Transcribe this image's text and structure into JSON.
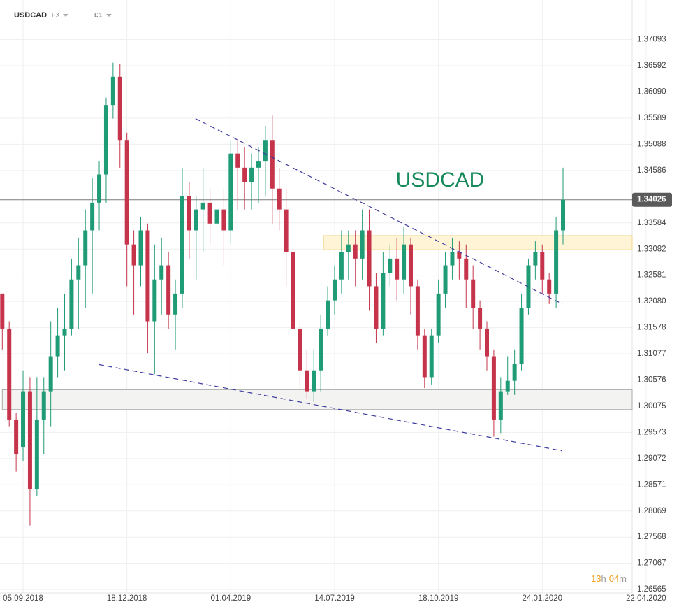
{
  "symbol": "USDCAD",
  "market": "FX",
  "timeframe": "D1",
  "countdown": [
    "13",
    "h",
    "04",
    "m"
  ],
  "chart_data": {
    "type": "candlestick",
    "watermark": "USDCAD",
    "categories": [
      null,
      null,
      null,
      "05.09.2018",
      null,
      null,
      null,
      null,
      null,
      null,
      null,
      null,
      null,
      null,
      null,
      null,
      null,
      null,
      "18.12.2018",
      null,
      null,
      null,
      null,
      null,
      null,
      null,
      null,
      null,
      null,
      null,
      null,
      null,
      null,
      "01.04.2019",
      null,
      null,
      null,
      null,
      null,
      null,
      null,
      null,
      null,
      null,
      null,
      null,
      null,
      null,
      "14.07.2019",
      null,
      null,
      null,
      null,
      null,
      null,
      null,
      null,
      null,
      null,
      null,
      null,
      null,
      null,
      "18.10.2019",
      null,
      null,
      null,
      null,
      null,
      null,
      null,
      null,
      null,
      null,
      null,
      null,
      null,
      null,
      "24.01.2020",
      null,
      null,
      null,
      null,
      null,
      null,
      null,
      null,
      null,
      null,
      null,
      null,
      null,
      null,
      "22.04.2020"
    ],
    "open": [
      1.3223,
      1.3156,
      1.2982,
      1.2929,
      1.3036,
      1.2849,
      1.2982,
      1.3036,
      1.3103,
      1.3143,
      1.3156,
      1.325,
      1.3277,
      1.3344,
      1.3397,
      1.3451,
      1.3584,
      1.3638,
      1.3517,
      1.3317,
      1.3277,
      1.3344,
      1.317,
      1.325,
      1.3277,
      1.3183,
      1.3223,
      1.341,
      1.3344,
      1.3384,
      1.3397,
      1.3357,
      1.3384,
      1.3344,
      1.3491,
      1.3464,
      1.3437,
      1.3464,
      1.3477,
      1.3517,
      1.3424,
      1.3384,
      1.3303,
      1.3156,
      1.3076,
      1.3036,
      1.3076,
      1.3156,
      1.321,
      1.325,
      1.3303,
      1.3317,
      1.329,
      1.3344,
      1.3237,
      1.3156,
      1.3263,
      1.329,
      1.325,
      1.3317,
      1.3237,
      1.3143,
      1.3063,
      1.3143,
      1.3223,
      1.3277,
      1.3303,
      1.329,
      1.325,
      1.3196,
      1.3156,
      1.3103,
      1.2982,
      1.3036,
      1.3056,
      1.3089,
      1.3196,
      1.3277,
      1.3303,
      1.325,
      1.3223,
      1.3344,
      null,
      null,
      null,
      null,
      null,
      null,
      null,
      null,
      null,
      null,
      null,
      null
    ],
    "high": [
      1.3223,
      1.317,
      1.2995,
      1.3076,
      1.3063,
      1.3063,
      1.3063,
      1.317,
      1.3196,
      1.3223,
      1.329,
      1.333,
      1.3384,
      1.3444,
      1.3477,
      1.3598,
      1.3665,
      1.3662,
      1.3531,
      1.3344,
      1.337,
      1.3357,
      1.3317,
      1.333,
      1.3303,
      1.325,
      1.3464,
      1.3437,
      1.341,
      1.3464,
      1.3424,
      1.341,
      1.3424,
      1.3517,
      1.3517,
      1.3504,
      1.3491,
      1.3504,
      1.3544,
      1.3564,
      1.3464,
      1.3424,
      1.3317,
      1.317,
      1.3116,
      1.3116,
      1.3183,
      1.3237,
      1.3277,
      1.3344,
      1.3344,
      1.3344,
      1.3384,
      1.3384,
      1.3263,
      1.3303,
      1.3317,
      1.333,
      1.335,
      1.333,
      1.325,
      1.3156,
      1.3156,
      1.325,
      1.3303,
      1.333,
      1.3323,
      1.3317,
      1.3277,
      1.321,
      1.317,
      1.3116,
      1.3063,
      1.3103,
      1.3116,
      1.3223,
      1.329,
      1.3323,
      1.3317,
      1.3263,
      1.337,
      1.3464,
      null,
      null,
      null,
      null,
      null,
      null,
      null,
      null,
      null,
      null,
      null,
      null
    ],
    "low": [
      1.3116,
      1.2969,
      1.2882,
      1.2902,
      1.2779,
      1.2835,
      1.2915,
      1.2969,
      1.3063,
      1.3076,
      1.3143,
      1.3156,
      1.3196,
      1.3223,
      1.3344,
      1.3397,
      1.3558,
      1.3464,
      1.3237,
      1.3183,
      1.3237,
      1.3109,
      1.3069,
      1.3183,
      1.3156,
      1.3116,
      1.3196,
      1.329,
      1.325,
      1.3303,
      1.3317,
      1.329,
      1.3277,
      1.3317,
      1.3384,
      1.3384,
      1.3384,
      1.3397,
      1.341,
      1.3357,
      1.3344,
      1.3237,
      1.3143,
      1.3042,
      1.3022,
      1.3016,
      1.3036,
      1.3143,
      1.3183,
      1.3223,
      1.325,
      1.3237,
      1.325,
      1.319,
      1.3129,
      1.3143,
      1.3237,
      1.321,
      1.3223,
      1.3183,
      1.3116,
      1.3042,
      1.3049,
      1.3129,
      1.3196,
      1.325,
      1.325,
      1.3196,
      1.3156,
      1.3116,
      1.3076,
      1.2949,
      1.2956,
      1.3029,
      1.3029,
      1.3076,
      1.3183,
      1.325,
      1.3223,
      1.3203,
      1.3196,
      1.3317,
      null,
      null,
      null,
      null,
      null,
      null,
      null,
      null,
      null,
      null,
      null,
      null
    ],
    "close": [
      1.3156,
      1.2982,
      1.2915,
      1.3036,
      1.2849,
      1.2982,
      1.3036,
      1.3103,
      1.3143,
      1.3156,
      1.325,
      1.3277,
      1.3344,
      1.3397,
      1.3451,
      1.3584,
      1.3638,
      1.3517,
      1.3317,
      1.3277,
      1.3344,
      1.317,
      1.325,
      1.3277,
      1.3183,
      1.3223,
      1.341,
      1.3344,
      1.3384,
      1.3397,
      1.3357,
      1.3384,
      1.3344,
      1.3491,
      1.3464,
      1.3437,
      1.3464,
      1.3477,
      1.3517,
      1.3424,
      1.3384,
      1.3303,
      1.3156,
      1.3076,
      1.3036,
      1.3076,
      1.3156,
      1.321,
      1.325,
      1.3303,
      1.3317,
      1.329,
      1.3344,
      1.3237,
      1.3156,
      1.3263,
      1.329,
      1.325,
      1.3317,
      1.3237,
      1.3143,
      1.3063,
      1.3143,
      1.3223,
      1.3277,
      1.3303,
      1.329,
      1.325,
      1.3196,
      1.3156,
      1.3103,
      1.2982,
      1.3036,
      1.3056,
      1.3089,
      1.3196,
      1.3277,
      1.3303,
      1.325,
      1.3223,
      1.3344,
      1.34026,
      null,
      null,
      null,
      null,
      null,
      null,
      null,
      null,
      null,
      null,
      null,
      null
    ],
    "up_color": "#1f9b76",
    "down_color": "#c6344c",
    "ylim": [
      1.265,
      1.3785
    ],
    "yticks": [
      1.37093,
      1.36592,
      {
        "value": 1.3609,
        "label": "1.36090"
      },
      1.35589,
      1.35088,
      1.34586,
      1.33584,
      1.33082,
      1.32581,
      {
        "value": 1.3208,
        "label": "1.32080"
      },
      1.31578,
      1.31077,
      1.30576,
      1.30075,
      1.29573,
      1.29072,
      1.28571,
      1.28069,
      1.27568,
      1.27067,
      1.26565
    ],
    "grid": true,
    "current_price": 1.34026,
    "zones": [
      {
        "low": 1.3307,
        "high": 1.3334,
        "start": 46.4,
        "color": "#fff5d6",
        "border": "#efd48a"
      },
      {
        "low": 1.3001,
        "high": 1.3039,
        "start": 0,
        "color": "#f3f3f1",
        "border": "#a9a9a9"
      }
    ],
    "trendlines": [
      {
        "x": [
          27.9,
          80.9
        ],
        "y": [
          1.3558,
          1.3203
        ],
        "color": "#3b3b9e"
      },
      {
        "x": [
          14.0,
          80.9
        ],
        "y": [
          1.3087,
          1.2922
        ],
        "color": "#3b3b9e"
      }
    ]
  }
}
